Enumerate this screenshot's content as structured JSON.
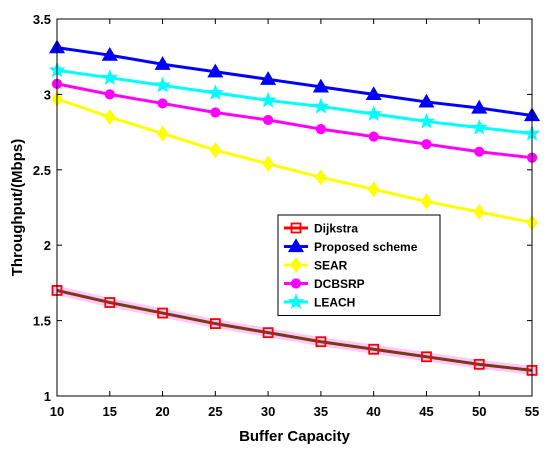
{
  "chart_data": {
    "type": "line",
    "xlabel": "Buffer Capacity",
    "ylabel": "Throughput/(Mbps)",
    "x": [
      10,
      15,
      20,
      25,
      30,
      35,
      40,
      45,
      50,
      55
    ],
    "xlim": [
      10,
      55
    ],
    "ylim": [
      1,
      3.5
    ],
    "xticks": [
      "10",
      "15",
      "20",
      "25",
      "30",
      "35",
      "40",
      "45",
      "50",
      "55"
    ],
    "yticks": [
      "1",
      "1.5",
      "2",
      "2.5",
      "3",
      "3.5"
    ],
    "legend_position": "center-right",
    "grid": false,
    "series": [
      {
        "name": "Dijkstra",
        "color": "#ff0000",
        "marker": "square",
        "values": [
          1.7,
          1.62,
          1.55,
          1.48,
          1.42,
          1.36,
          1.31,
          1.26,
          1.21,
          1.17
        ]
      },
      {
        "name": "Proposed scheme",
        "color": "#0000ff",
        "marker": "triangle",
        "values": [
          3.31,
          3.26,
          3.2,
          3.15,
          3.1,
          3.05,
          3.0,
          2.95,
          2.91,
          2.86
        ]
      },
      {
        "name": "SEAR",
        "color": "#ffff00",
        "marker": "diamond",
        "values": [
          2.97,
          2.85,
          2.74,
          2.63,
          2.54,
          2.45,
          2.37,
          2.29,
          2.22,
          2.15
        ]
      },
      {
        "name": "DCBSRP",
        "color": "#ff00ff",
        "marker": "circle",
        "values": [
          3.07,
          3.0,
          2.94,
          2.88,
          2.83,
          2.77,
          2.72,
          2.67,
          2.62,
          2.58
        ]
      },
      {
        "name": "LEACH",
        "color": "#00ffff",
        "marker": "star",
        "values": [
          3.16,
          3.11,
          3.06,
          3.01,
          2.96,
          2.92,
          2.87,
          2.82,
          2.78,
          2.74
        ]
      }
    ]
  }
}
